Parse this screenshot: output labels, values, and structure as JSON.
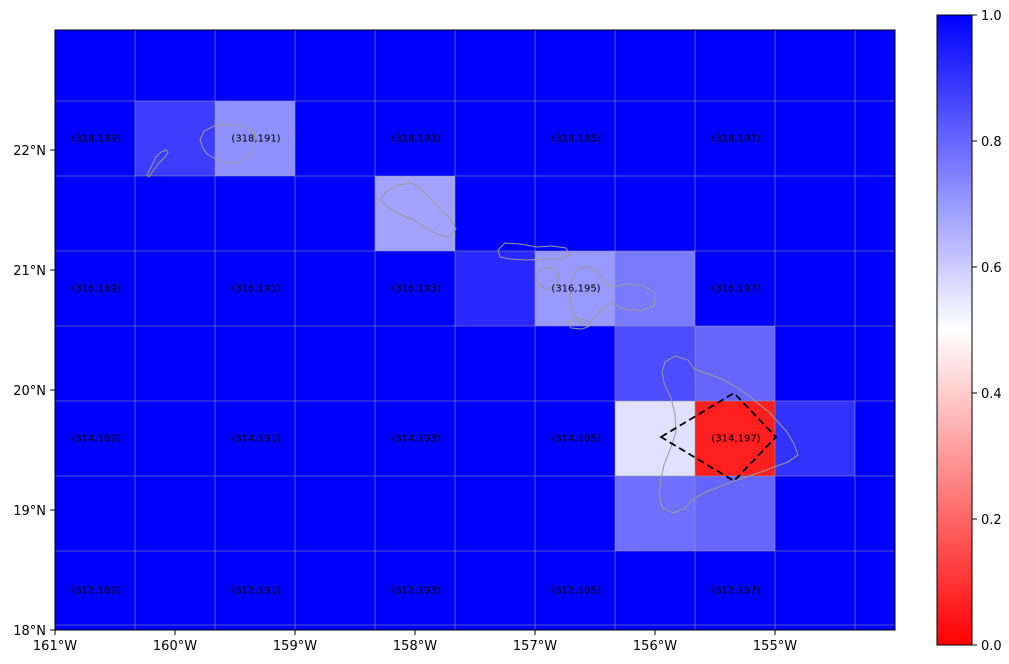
{
  "map": {
    "x_ticks": [
      "161°W",
      "160°W",
      "159°W",
      "158°W",
      "157°W",
      "156°W",
      "155°W"
    ],
    "y_ticks": [
      "18°N",
      "19°N",
      "20°N",
      "21°N",
      "22°N"
    ],
    "colorbar_ticks": [
      "0.0",
      "0.2",
      "0.4",
      "0.6",
      "0.8",
      "1.0"
    ],
    "colormap": [
      "#ff0000",
      "#ffffff",
      "#0000ff"
    ],
    "grid_rows": [
      {
        "row": 0,
        "values": [
          1,
          1,
          1,
          1,
          1,
          1,
          1,
          1,
          1,
          1,
          1
        ]
      },
      {
        "row": 1,
        "values": [
          1,
          0.88,
          0.72,
          1,
          1,
          1,
          1,
          1,
          1,
          1,
          1
        ]
      },
      {
        "row": 2,
        "values": [
          1,
          1,
          1,
          1,
          0.68,
          1,
          1,
          1,
          1,
          1,
          1
        ]
      },
      {
        "row": 3,
        "values": [
          1,
          1,
          1,
          1,
          1,
          0.92,
          0.7,
          0.76,
          1,
          1,
          1
        ]
      },
      {
        "row": 4,
        "values": [
          1,
          1,
          1,
          1,
          1,
          1,
          1,
          0.85,
          0.8,
          1,
          1
        ]
      },
      {
        "row": 5,
        "values": [
          1,
          1,
          1,
          1,
          1,
          1,
          1,
          0.56,
          0.06,
          0.9,
          1
        ]
      },
      {
        "row": 6,
        "values": [
          1,
          1,
          1,
          1,
          1,
          1,
          1,
          0.78,
          0.8,
          1,
          1
        ]
      },
      {
        "row": 7,
        "values": [
          1,
          1,
          1,
          1,
          1,
          1,
          1,
          1,
          1,
          1,
          1
        ]
      }
    ],
    "cell_labels": [
      {
        "text": "(318,189)",
        "col": 0,
        "row": 1
      },
      {
        "text": "(318,191)",
        "col": 2,
        "row": 1
      },
      {
        "text": "(318,193)",
        "col": 4,
        "row": 1
      },
      {
        "text": "(318,195)",
        "col": 6,
        "row": 1
      },
      {
        "text": "(318,197)",
        "col": 8,
        "row": 1
      },
      {
        "text": "(316,189)",
        "col": 0,
        "row": 3
      },
      {
        "text": "(316,191)",
        "col": 2,
        "row": 3
      },
      {
        "text": "(316,193)",
        "col": 4,
        "row": 3
      },
      {
        "text": "(316,195)",
        "col": 6,
        "row": 3
      },
      {
        "text": "(316,197)",
        "col": 8,
        "row": 3
      },
      {
        "text": "(314,189)",
        "col": 0,
        "row": 5
      },
      {
        "text": "(314,191)",
        "col": 2,
        "row": 5
      },
      {
        "text": "(314,193)",
        "col": 4,
        "row": 5
      },
      {
        "text": "(314,195)",
        "col": 6,
        "row": 5
      },
      {
        "text": "(314,197)",
        "col": 8,
        "row": 5
      },
      {
        "text": "(312,189)",
        "col": 0,
        "row": 7
      },
      {
        "text": "(312,191)",
        "col": 2,
        "row": 7
      },
      {
        "text": "(312,193)",
        "col": 4,
        "row": 7
      },
      {
        "text": "(312,195)",
        "col": 6,
        "row": 7
      },
      {
        "text": "(312,197)",
        "col": 8,
        "row": 7
      }
    ]
  }
}
